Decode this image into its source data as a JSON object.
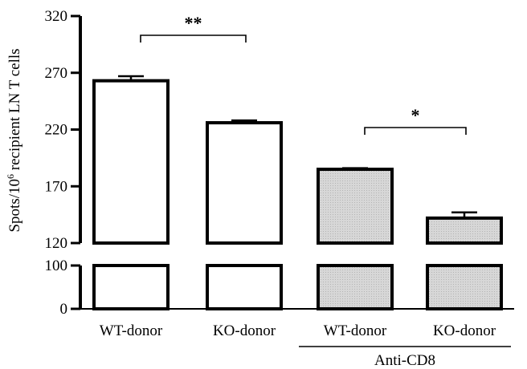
{
  "chart_data": {
    "type": "bar",
    "title": "",
    "xlabel": "",
    "ylabel_prefix": "Spots/10",
    "ylabel_sup": "6",
    "ylabel_suffix": " recipient LN T cells",
    "ylim_lower": [
      0,
      100
    ],
    "ylim_upper": [
      120,
      320
    ],
    "axis_break": true,
    "yticks": [
      "0",
      "100",
      "120",
      "170",
      "220",
      "270",
      "320"
    ],
    "yticks_lower": [
      0,
      100
    ],
    "yticks_upper": [
      120,
      170,
      220,
      270,
      320
    ],
    "categories": [
      "WT-donor",
      "KO-donor",
      "WT-donor",
      "KO-donor"
    ],
    "values": [
      263,
      226,
      185,
      142
    ],
    "errors": [
      4,
      2,
      1,
      5
    ],
    "fills": [
      "white",
      "white",
      "dotted-gray",
      "dotted-gray"
    ],
    "group_label": "Anti-CD8",
    "group_categories": [
      2,
      3
    ],
    "significance": [
      {
        "pair": [
          0,
          1
        ],
        "label": "**"
      },
      {
        "pair": [
          2,
          3
        ],
        "label": "*"
      }
    ],
    "grid": false,
    "legend": "none"
  }
}
